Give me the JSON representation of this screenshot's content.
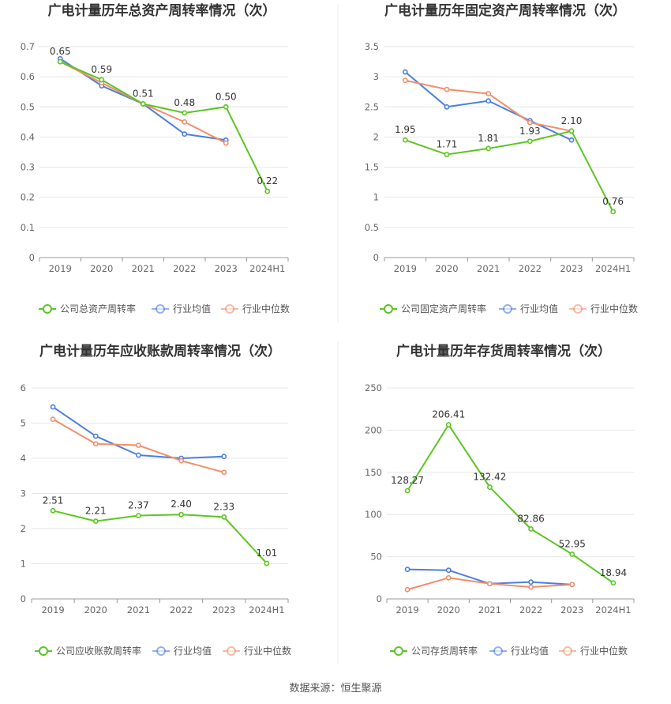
{
  "source": "数据来源：恒生聚源",
  "series_colors": [
    "#5dc523",
    "#4a7fe0",
    "#f28e6b"
  ],
  "chart_data": [
    {
      "type": "line",
      "title": "广电计量历年总资产周转率情况（次）",
      "categories": [
        "2019",
        "2020",
        "2021",
        "2022",
        "2023",
        "2024H1"
      ],
      "ylim": [
        0,
        0.7
      ],
      "yticks": [
        "0",
        "0.1",
        "0.2",
        "0.3",
        "0.4",
        "0.5",
        "0.6",
        "0.7"
      ],
      "legend_position": "bottom",
      "series": [
        {
          "name": "公司总资产周转率",
          "values": [
            0.65,
            0.59,
            0.51,
            0.48,
            0.5,
            0.22
          ],
          "labels": [
            "0.65",
            "0.59",
            "0.51",
            "0.48",
            "0.50",
            "0.22"
          ]
        },
        {
          "name": "行业均值",
          "values": [
            0.66,
            0.57,
            0.51,
            0.41,
            0.39,
            null
          ]
        },
        {
          "name": "行业中位数",
          "values": [
            0.65,
            0.58,
            0.51,
            0.45,
            0.38,
            null
          ]
        }
      ]
    },
    {
      "type": "line",
      "title": "广电计量历年固定资产周转率情况（次）",
      "categories": [
        "2019",
        "2020",
        "2021",
        "2022",
        "2023",
        "2024H1"
      ],
      "ylim": [
        0,
        3.5
      ],
      "yticks": [
        "0",
        "0.5",
        "1",
        "1.5",
        "2",
        "2.5",
        "3",
        "3.5"
      ],
      "legend_position": "bottom",
      "series": [
        {
          "name": "公司固定资产周转率",
          "values": [
            1.95,
            1.71,
            1.81,
            1.93,
            2.1,
            0.76
          ],
          "labels": [
            "1.95",
            "1.71",
            "1.81",
            "1.93",
            "2.10",
            "0.76"
          ]
        },
        {
          "name": "行业均值",
          "values": [
            3.08,
            2.5,
            2.6,
            2.27,
            1.95,
            null
          ]
        },
        {
          "name": "行业中位数",
          "values": [
            2.94,
            2.79,
            2.72,
            2.24,
            2.1,
            null
          ]
        }
      ]
    },
    {
      "type": "line",
      "title": "广电计量历年应收账款周转率情况（次）",
      "categories": [
        "2019",
        "2020",
        "2021",
        "2022",
        "2023",
        "2024H1"
      ],
      "ylim": [
        0,
        6
      ],
      "yticks": [
        "0",
        "1",
        "2",
        "3",
        "4",
        "5",
        "6"
      ],
      "legend_position": "bottom",
      "series": [
        {
          "name": "公司应收账款周转率",
          "values": [
            2.51,
            2.21,
            2.37,
            2.4,
            2.33,
            1.01
          ],
          "labels": [
            "2.51",
            "2.21",
            "2.37",
            "2.40",
            "2.33",
            "1.01"
          ]
        },
        {
          "name": "行业均值",
          "values": [
            5.46,
            4.63,
            4.09,
            4.0,
            4.05,
            null
          ]
        },
        {
          "name": "行业中位数",
          "values": [
            5.11,
            4.41,
            4.37,
            3.93,
            3.6,
            null
          ]
        }
      ]
    },
    {
      "type": "line",
      "title": "广电计量历年存货周转率情况（次）",
      "categories": [
        "2019",
        "2020",
        "2021",
        "2022",
        "2023",
        "2024H1"
      ],
      "ylim": [
        0,
        250
      ],
      "yticks": [
        "0",
        "50",
        "100",
        "150",
        "200",
        "250"
      ],
      "legend_position": "bottom",
      "series": [
        {
          "name": "公司存货周转率",
          "values": [
            128.27,
            206.41,
            132.42,
            82.86,
            52.95,
            18.94
          ],
          "labels": [
            "128.27",
            "206.41",
            "132.42",
            "82.86",
            "52.95",
            "18.94"
          ]
        },
        {
          "name": "行业均值",
          "values": [
            35,
            34,
            18,
            20,
            17,
            null
          ]
        },
        {
          "name": "行业中位数",
          "values": [
            11,
            25,
            18,
            14,
            17,
            null
          ]
        }
      ]
    }
  ]
}
